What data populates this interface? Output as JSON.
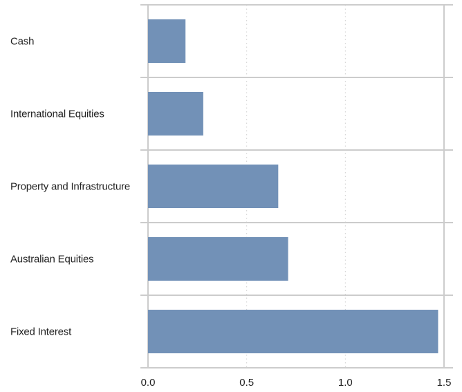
{
  "colors": {
    "bar": "#7291b7",
    "axis": "#cccccc",
    "grid": "#cfcfcf",
    "text": "#222222"
  },
  "chart_data": {
    "type": "bar",
    "orientation": "horizontal",
    "categories": [
      "Cash",
      "International Equities",
      "Property and Infrastructure",
      "Australian Equities",
      "Fixed Interest"
    ],
    "values": [
      0.19,
      0.28,
      0.66,
      0.71,
      1.47
    ],
    "title": "",
    "xlabel": "",
    "ylabel": "",
    "xlim": [
      0,
      1.5
    ],
    "xticks": [
      "0.0",
      "0.5",
      "1.0",
      "1.5"
    ],
    "grid": "vertical dotted",
    "legend": "none"
  }
}
